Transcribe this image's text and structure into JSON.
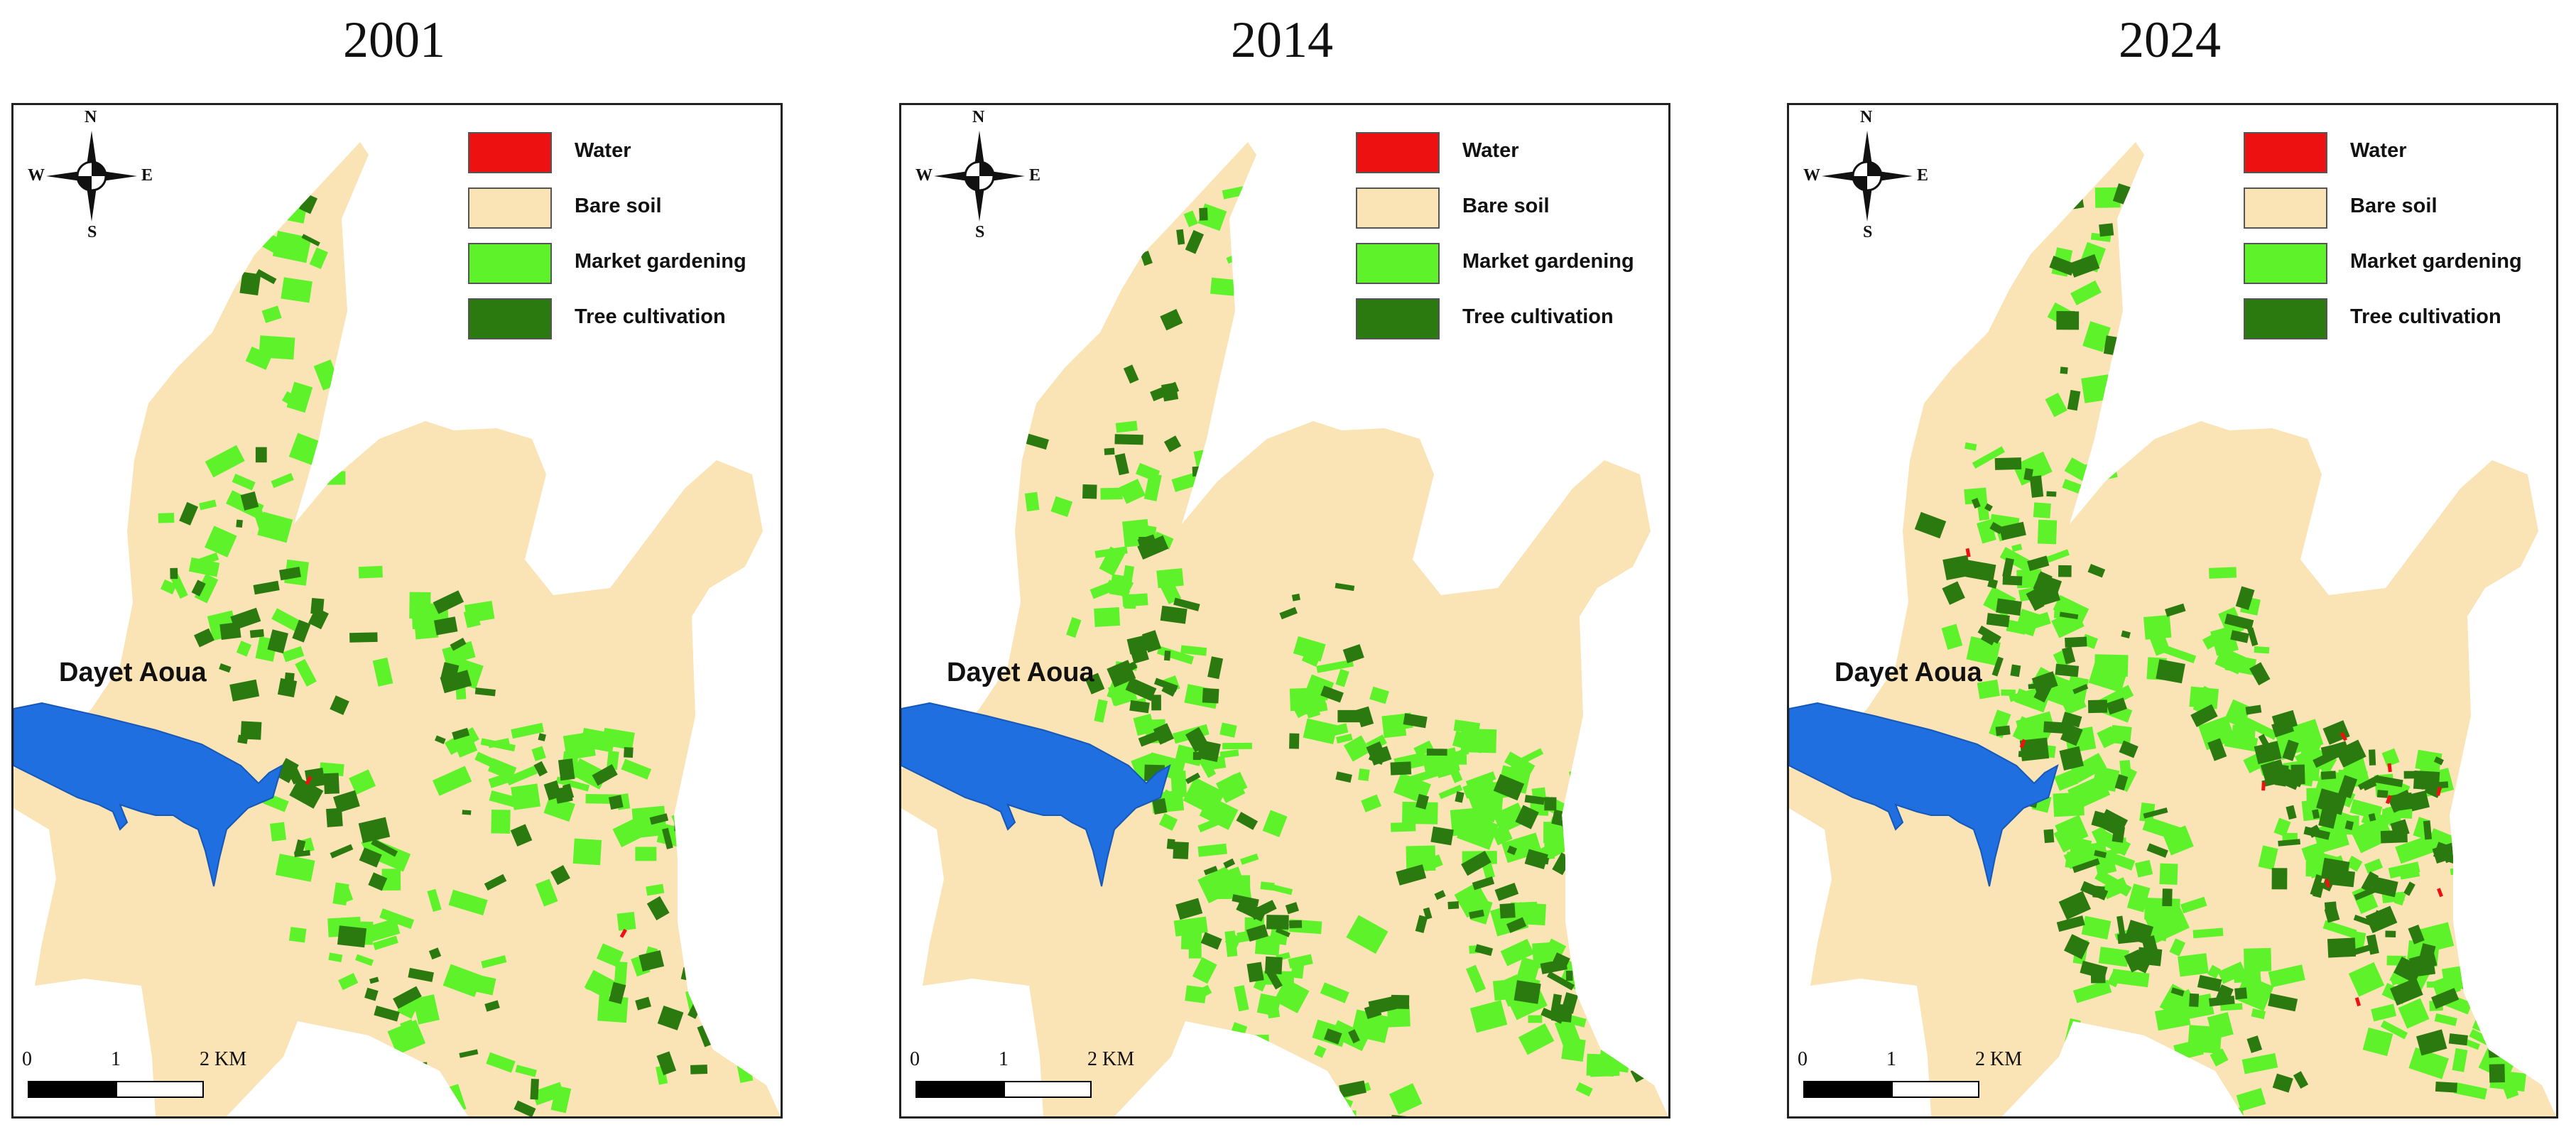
{
  "panels": [
    {
      "year": "2001",
      "lake_label": "Dayet Aoua",
      "compass": {
        "n": "N",
        "s": "S",
        "e": "E",
        "w": "W"
      },
      "scale": {
        "t0": "0",
        "t1": "1",
        "t2": "2 KM"
      },
      "density": {
        "market": 0.55,
        "tree": 0.45,
        "water_dots": 2
      }
    },
    {
      "year": "2014",
      "lake_label": "Dayet Aoua",
      "compass": {
        "n": "N",
        "s": "S",
        "e": "E",
        "w": "W"
      },
      "scale": {
        "t0": "0",
        "t1": "1",
        "t2": "2 KM"
      },
      "density": {
        "market": 0.85,
        "tree": 0.6,
        "water_dots": 0
      }
    },
    {
      "year": "2024",
      "lake_label": "Dayet Aoua",
      "compass": {
        "n": "N",
        "s": "S",
        "e": "E",
        "w": "W"
      },
      "scale": {
        "t0": "0",
        "t1": "1",
        "t2": "2 KM"
      },
      "density": {
        "market": 1.0,
        "tree": 0.9,
        "water_dots": 10
      }
    }
  ],
  "legend": [
    {
      "label": "Water",
      "color": "#ee1111"
    },
    {
      "label": "Bare soil",
      "color": "#fae3b4"
    },
    {
      "label": "Market gardening",
      "color": "#5df22a"
    },
    {
      "label": "Tree cultivation",
      "color": "#2a7a10"
    }
  ],
  "colors": {
    "bare_soil": "#fae3b4",
    "market": "#5df22a",
    "tree": "#2a7a10",
    "water": "#ee1111",
    "lake": "#1f6fe0",
    "lake_stroke": "#1658b8"
  }
}
